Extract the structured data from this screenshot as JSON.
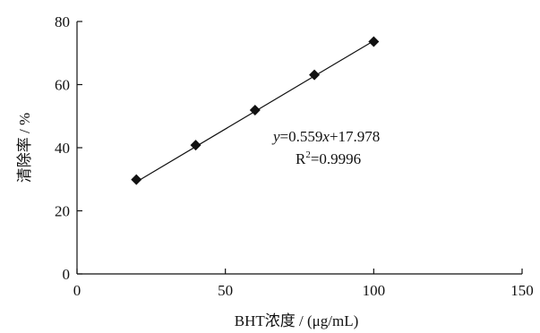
{
  "chart_data": {
    "type": "scatter",
    "title": "",
    "xlabel": "BHT浓度 / (μg/mL)",
    "ylabel": "清除率 / %",
    "xlim": [
      0,
      150
    ],
    "ylim": [
      0,
      80
    ],
    "x_ticks": [
      0,
      50,
      100,
      150
    ],
    "y_ticks": [
      0,
      20,
      40,
      60,
      80
    ],
    "grid": false,
    "series": [
      {
        "marker": "diamond",
        "x": [
          20,
          40,
          60,
          80,
          100
        ],
        "y": [
          29.9,
          40.8,
          51.9,
          63.1,
          73.6
        ]
      }
    ],
    "fit_line": {
      "slope": 0.559,
      "intercept": 17.978,
      "x_range": [
        20,
        100
      ]
    },
    "annotations": {
      "equation_y": "y",
      "equation_mid": "=0.559",
      "equation_x": "x",
      "equation_tail": "+17.978",
      "r2_base": "R",
      "r2_sup": "2",
      "r2_value": "=0.9996"
    }
  }
}
